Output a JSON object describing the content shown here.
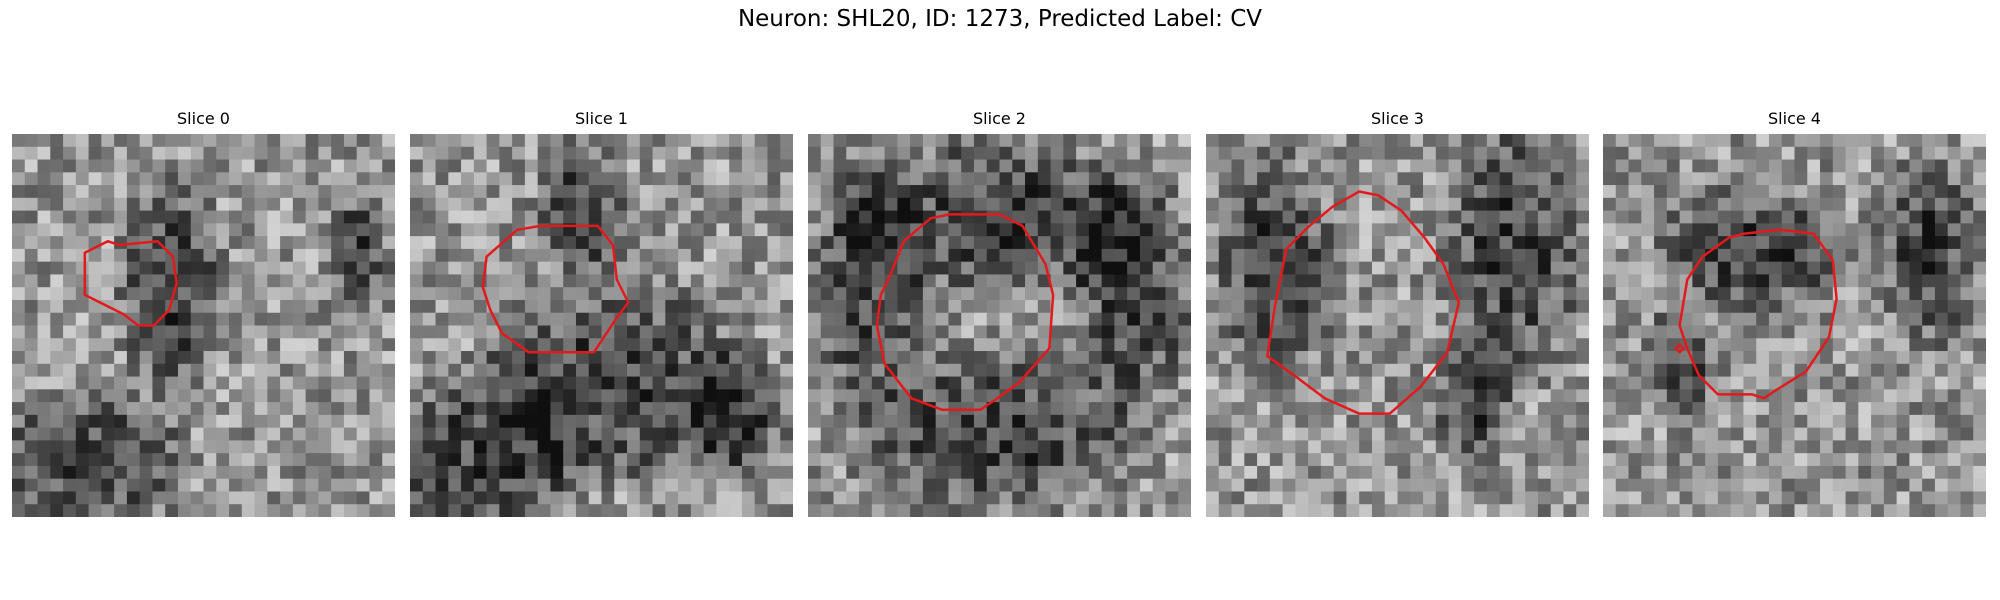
{
  "figure": {
    "title": "Neuron: SHL20, ID: 1273, Predicted Label: CV"
  },
  "outline_color": "#e31a1c",
  "grid_cells": 30,
  "panels": [
    {
      "title": "Slice 0",
      "seed": 11,
      "dark_regions": [
        [
          0.42,
          0.4,
          0.16,
          0.35
        ],
        [
          0.2,
          0.85,
          0.3,
          0.22
        ],
        [
          0.9,
          0.3,
          0.1,
          0.15
        ]
      ],
      "outline": [
        [
          19,
          31
        ],
        [
          25,
          28
        ],
        [
          28,
          29
        ],
        [
          38,
          28
        ],
        [
          42,
          32
        ],
        [
          43,
          39
        ],
        [
          41,
          46
        ],
        [
          37,
          50
        ],
        [
          33,
          50
        ],
        [
          29,
          47
        ],
        [
          23,
          44
        ],
        [
          19,
          42
        ],
        [
          19,
          35
        ]
      ]
    },
    {
      "title": "Slice 1",
      "seed": 23,
      "dark_regions": [
        [
          0.45,
          0.2,
          0.14,
          0.22
        ],
        [
          0.2,
          0.85,
          0.3,
          0.3
        ],
        [
          0.85,
          0.75,
          0.15,
          0.2
        ],
        [
          0.55,
          0.65,
          0.4,
          0.3
        ]
      ],
      "outline": [
        [
          20,
          32
        ],
        [
          28,
          25
        ],
        [
          34,
          24
        ],
        [
          49,
          24
        ],
        [
          53,
          29
        ],
        [
          54,
          38
        ],
        [
          57,
          44
        ],
        [
          54,
          48
        ],
        [
          48,
          57
        ],
        [
          31,
          57
        ],
        [
          24,
          52
        ],
        [
          21,
          46
        ],
        [
          19,
          40
        ]
      ]
    },
    {
      "title": "Slice 2",
      "seed": 37,
      "dark_regions": [
        [
          0.15,
          0.4,
          0.18,
          0.38
        ],
        [
          0.85,
          0.4,
          0.18,
          0.38
        ],
        [
          0.5,
          0.22,
          0.45,
          0.25
        ],
        [
          0.5,
          0.78,
          0.45,
          0.25
        ]
      ],
      "outline": [
        [
          21,
          38
        ],
        [
          25,
          28
        ],
        [
          32,
          22
        ],
        [
          37,
          21
        ],
        [
          50,
          21
        ],
        [
          56,
          24
        ],
        [
          62,
          34
        ],
        [
          64,
          42
        ],
        [
          63,
          56
        ],
        [
          55,
          65
        ],
        [
          48,
          70
        ],
        [
          45,
          72
        ],
        [
          35,
          72
        ],
        [
          27,
          69
        ],
        [
          20,
          60
        ],
        [
          18,
          50
        ],
        [
          19,
          42
        ]
      ]
    },
    {
      "title": "Slice 3",
      "seed": 53,
      "dark_regions": [
        [
          0.18,
          0.35,
          0.18,
          0.35
        ],
        [
          0.8,
          0.3,
          0.22,
          0.4
        ],
        [
          0.7,
          0.7,
          0.12,
          0.2
        ]
      ],
      "outline": [
        [
          21,
          30
        ],
        [
          27,
          24
        ],
        [
          33,
          19
        ],
        [
          40,
          15
        ],
        [
          45,
          16
        ],
        [
          51,
          20
        ],
        [
          57,
          27
        ],
        [
          62,
          34
        ],
        [
          66,
          44
        ],
        [
          63,
          57
        ],
        [
          56,
          66
        ],
        [
          48,
          73
        ],
        [
          40,
          73
        ],
        [
          31,
          69
        ],
        [
          23,
          63
        ],
        [
          16,
          58
        ],
        [
          18,
          45
        ]
      ]
    },
    {
      "title": "Slice 4",
      "seed": 71,
      "dark_regions": [
        [
          0.4,
          0.3,
          0.3,
          0.2
        ],
        [
          0.85,
          0.3,
          0.15,
          0.3
        ],
        [
          0.2,
          0.6,
          0.1,
          0.2
        ]
      ],
      "outline": [
        [
          26,
          32
        ],
        [
          33,
          27
        ],
        [
          37,
          26
        ],
        [
          46,
          25
        ],
        [
          55,
          26
        ],
        [
          60,
          33
        ],
        [
          61,
          43
        ],
        [
          59,
          53
        ],
        [
          53,
          62
        ],
        [
          45,
          67
        ],
        [
          42,
          69
        ],
        [
          39,
          68
        ],
        [
          30,
          68
        ],
        [
          25,
          63
        ],
        [
          22,
          56
        ],
        [
          20,
          50
        ],
        [
          22,
          38
        ]
      ],
      "notch": [
        [
          20,
          55
        ],
        [
          21,
          56
        ],
        [
          20,
          57
        ],
        [
          19,
          56
        ]
      ]
    }
  ]
}
